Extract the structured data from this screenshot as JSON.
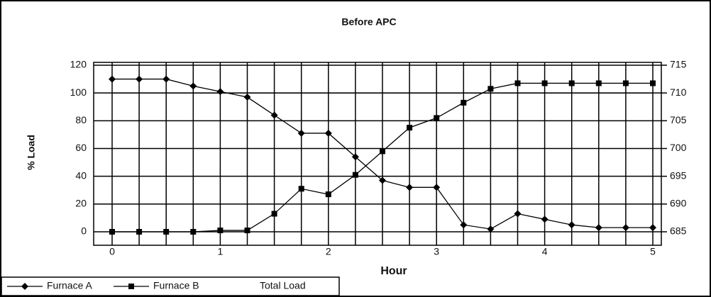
{
  "chart_data": {
    "type": "line",
    "title": "Before APC",
    "x_label": "Hour",
    "y_label": "% Load",
    "x": [
      0,
      0.25,
      0.5,
      0.75,
      1,
      1.25,
      1.5,
      1.75,
      2,
      2.25,
      2.5,
      2.75,
      3,
      3.25,
      3.5,
      3.75,
      4,
      4.25,
      4.5,
      4.75,
      5
    ],
    "series": [
      {
        "name": "Furnace A",
        "color": "#000000",
        "marker": "diamond",
        "values": [
          110,
          110,
          110,
          105,
          101,
          97,
          84,
          71,
          71,
          54,
          37,
          32,
          32,
          5,
          2,
          13,
          9,
          5,
          3,
          3,
          3
        ]
      },
      {
        "name": "Furnace B",
        "color": "#000000",
        "marker": "square",
        "values": [
          0,
          0,
          0,
          0,
          1,
          1,
          13,
          31,
          27,
          41,
          58,
          75,
          82,
          93,
          103,
          107,
          107,
          107,
          107,
          107,
          107
        ]
      },
      {
        "name": "Total Load",
        "color": "#000000",
        "marker": "none",
        "axis": "y2",
        "values": [
          710,
          710,
          710,
          710,
          710,
          710,
          710,
          710,
          710,
          710,
          710,
          710,
          710,
          710,
          710,
          710,
          710,
          710,
          710,
          710,
          710
        ]
      }
    ],
    "xlim": [
      0,
      5
    ],
    "xticks": [
      0,
      1,
      2,
      3,
      4,
      5
    ],
    "ylim": [
      0,
      120
    ],
    "yticks": [
      0,
      20,
      40,
      60,
      80,
      100,
      120
    ],
    "y2lim": [
      685,
      715
    ],
    "y2ticks": [
      685,
      690,
      695,
      700,
      705,
      710,
      715
    ],
    "grid": true,
    "legend": "bottom-left"
  }
}
